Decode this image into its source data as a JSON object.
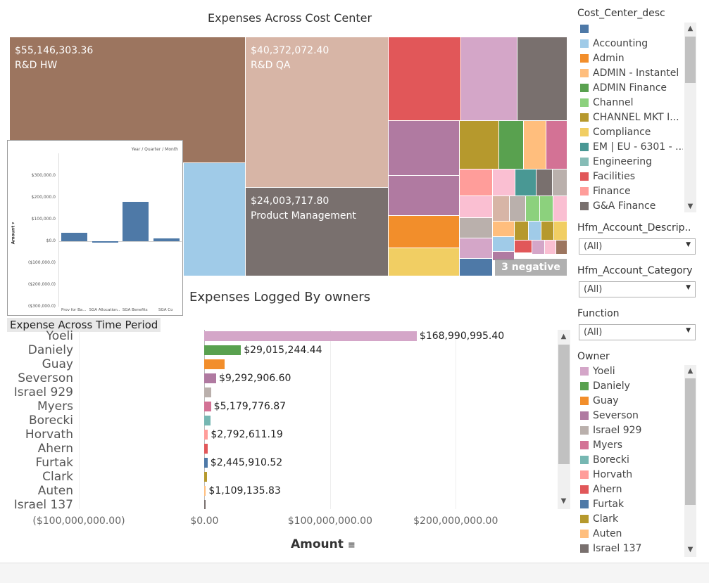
{
  "treemap": {
    "title": "Expenses Across Cost Center",
    "labeled": [
      {
        "value": "$55,146,303.36",
        "name": "R&D HW"
      },
      {
        "value": "$40,372,072.40",
        "name": "R&D QA"
      },
      {
        "value": "$24,003,717.80",
        "name": "Product Management"
      }
    ],
    "negative_badge": "3 negative"
  },
  "time_popup": {
    "title": "Expense Across Time Period",
    "header": "Year / Quarter / Month",
    "y_label": "Amount ▾",
    "y_ticks": [
      "$300,000.0",
      "$200,000.0",
      "$100,000.0",
      "$0.0",
      "($100,000.0)",
      "($200,000.0)",
      "($300,000.0)"
    ],
    "x_ticks": [
      "Prov for Ba...",
      "SGA Allocation...",
      "SGA Benefits",
      "SGA Co"
    ],
    "chart_data": {
      "type": "bar",
      "categories": [
        "Prov for Ba...",
        "SGA Allocation...",
        "SGA Benefits",
        "SGA Co"
      ],
      "values": [
        38000,
        -4000,
        182000,
        12000
      ],
      "ylim": [
        -300000,
        300000
      ]
    }
  },
  "owners_chart": {
    "title": "Expenses Logged By owners",
    "x_label": "Amount",
    "x_ticks": [
      "($100,000,000.00)",
      "$0.00",
      "$100,000,000.00",
      "$200,000,000.00"
    ],
    "chart_data": {
      "type": "bar",
      "orientation": "horizontal",
      "categories": [
        "Yoeli",
        "Daniely",
        "Guay",
        "Severson",
        "Israel 929",
        "Myers",
        "Borecki",
        "Horvath",
        "Ahern",
        "Furtak",
        "Clark",
        "Auten",
        "Israel 137"
      ],
      "values": [
        168990995.4,
        29015244.44,
        16000000,
        9292906.6,
        5600000,
        5179776.87,
        5000000,
        2792611.19,
        2600000,
        2445910.52,
        1900000,
        1109135.83,
        900000
      ],
      "data_labels": [
        "$168,990,995.40",
        "$29,015,244.44",
        "",
        "$9,292,906.60",
        "",
        "$5,179,776.87",
        "",
        "$2,792,611.19",
        "",
        "$2,445,910.52",
        "",
        "$1,109,135.83",
        ""
      ],
      "xlim": [
        -100000000,
        280000000
      ]
    }
  },
  "filters": {
    "cost_center": {
      "title": "Cost_Center_desc",
      "items": [
        {
          "label": "",
          "color": "#4e79a7"
        },
        {
          "label": "Accounting",
          "color": "#a0cbe8"
        },
        {
          "label": "Admin",
          "color": "#f28e2b"
        },
        {
          "label": "ADMIN - Instantel",
          "color": "#ffbe7d"
        },
        {
          "label": "ADMIN Finance",
          "color": "#59a14f"
        },
        {
          "label": "Channel",
          "color": "#8cd17d"
        },
        {
          "label": "CHANNEL MKT I...",
          "color": "#b6992d"
        },
        {
          "label": "Compliance",
          "color": "#f1ce63"
        },
        {
          "label": "EM | EU - 6301 - ...",
          "color": "#499894"
        },
        {
          "label": "Engineering",
          "color": "#86bcb6"
        },
        {
          "label": "Facilities",
          "color": "#e15759"
        },
        {
          "label": "Finance",
          "color": "#ff9d9a"
        },
        {
          "label": "G&A Finance",
          "color": "#79706e"
        }
      ]
    },
    "hfm_desc": {
      "title": "Hfm_Account_Descrip..",
      "value": "(All)"
    },
    "hfm_category": {
      "title": "Hfm_Account_Category",
      "value": "(All)"
    },
    "function": {
      "title": "Function",
      "value": "(All)"
    },
    "owner": {
      "title": "Owner",
      "items": [
        {
          "label": "Yoeli",
          "color": "#d4a6c8"
        },
        {
          "label": "Daniely",
          "color": "#59a14f"
        },
        {
          "label": "Guay",
          "color": "#f28e2b"
        },
        {
          "label": "Severson",
          "color": "#b07aa1"
        },
        {
          "label": "Israel 929",
          "color": "#bab0ac"
        },
        {
          "label": "Myers",
          "color": "#d37295"
        },
        {
          "label": "Borecki",
          "color": "#76b7b2"
        },
        {
          "label": "Horvath",
          "color": "#ff9d9a"
        },
        {
          "label": "Ahern",
          "color": "#e15759"
        },
        {
          "label": "Furtak",
          "color": "#4e79a7"
        },
        {
          "label": "Clark",
          "color": "#b6992d"
        },
        {
          "label": "Auten",
          "color": "#ffbe7d"
        },
        {
          "label": "Israel 137",
          "color": "#79706e"
        }
      ]
    }
  }
}
